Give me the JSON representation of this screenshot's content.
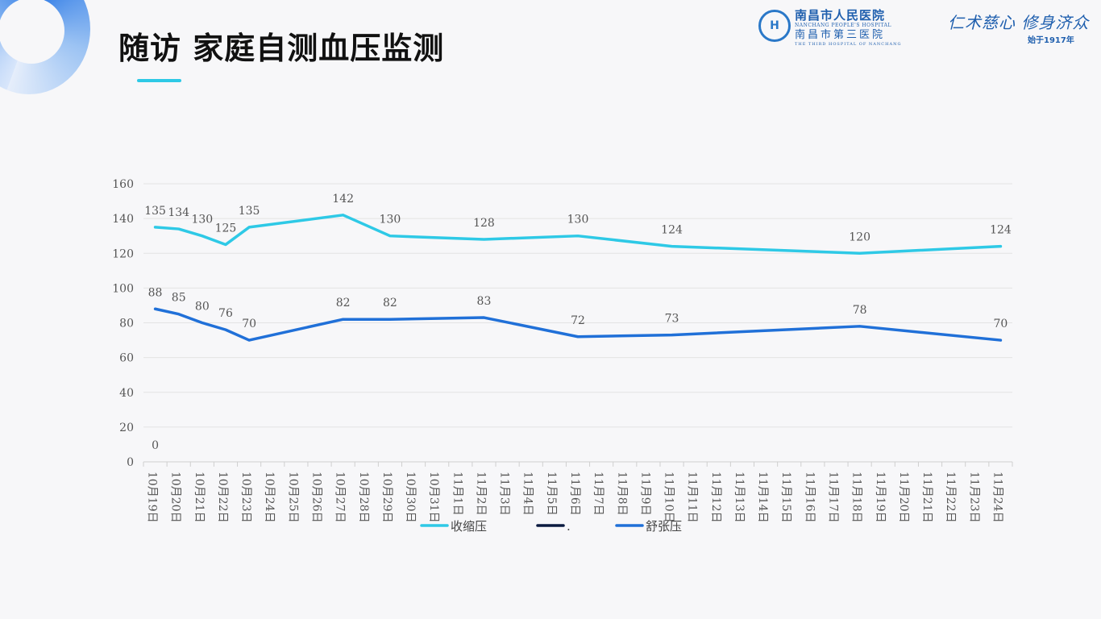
{
  "page": {
    "title": "随访 家庭自测血压监测",
    "hospital_name_cn": "南昌市人民医院",
    "hospital_name_en": "NANCHANG PEOPLE'S HOSPITAL",
    "hospital_name_cn2": "南昌市第三医院",
    "hospital_name_en2": "THE THIRD HOSPITAL OF NANCHANG",
    "slogan": "仁术慈心 修身济众",
    "since": "始于1917年"
  },
  "colors": {
    "systolic": "#2ec9e6",
    "dot_series": "#0a1a40",
    "diastolic": "#2070d8",
    "accent": "#2ec9e6",
    "brand_blue": "#1f5fae"
  },
  "chart_data": {
    "type": "line",
    "title": "",
    "xlabel": "",
    "ylabel": "",
    "ylim": [
      0,
      160
    ],
    "yticks": [
      0,
      20,
      40,
      60,
      80,
      100,
      120,
      140,
      160
    ],
    "grid": true,
    "legend_position": "bottom",
    "categories": [
      "10月19日",
      "10月20日",
      "10月21日",
      "10月22日",
      "10月23日",
      "10月24日",
      "10月25日",
      "10月26日",
      "10月27日",
      "10月28日",
      "10月29日",
      "10月30日",
      "10月31日",
      "11月1日",
      "11月2日",
      "11月3日",
      "11月4日",
      "11月5日",
      "11月6日",
      "11月7日",
      "11月8日",
      "11月9日",
      "11月10日",
      "11月11日",
      "11月12日",
      "11月13日",
      "11月14日",
      "11月15日",
      "11月16日",
      "11月17日",
      "11月18日",
      "11月19日",
      "11月20日",
      "11月21日",
      "11月22日",
      "11月23日",
      "11月24日"
    ],
    "series": [
      {
        "name": "收缩压",
        "points": [
          [
            0,
            135
          ],
          [
            1,
            134
          ],
          [
            2,
            130
          ],
          [
            3,
            125
          ],
          [
            4,
            135
          ],
          [
            8,
            142
          ],
          [
            10,
            130
          ],
          [
            14,
            128
          ],
          [
            18,
            130
          ],
          [
            22,
            124
          ],
          [
            30,
            120
          ],
          [
            36,
            124
          ]
        ]
      },
      {
        "name": ".",
        "points": [
          [
            0,
            0
          ]
        ]
      },
      {
        "name": "舒张压",
        "points": [
          [
            0,
            88
          ],
          [
            1,
            85
          ],
          [
            2,
            80
          ],
          [
            3,
            76
          ],
          [
            4,
            70
          ],
          [
            8,
            82
          ],
          [
            10,
            82
          ],
          [
            14,
            83
          ],
          [
            18,
            72
          ],
          [
            22,
            73
          ],
          [
            30,
            78
          ],
          [
            36,
            70
          ]
        ]
      }
    ]
  }
}
